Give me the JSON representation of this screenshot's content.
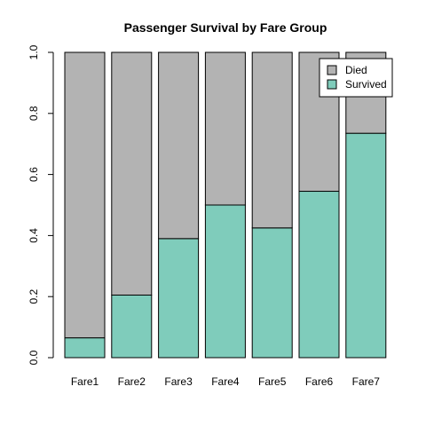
{
  "chart_data": {
    "type": "bar",
    "stacked": true,
    "title": "Passenger Survival by Fare Group",
    "xlabel": "",
    "ylabel": "",
    "categories": [
      "Fare1",
      "Fare2",
      "Fare3",
      "Fare4",
      "Fare5",
      "Fare6",
      "Fare7"
    ],
    "series": [
      {
        "name": "Survived",
        "color": "#7fccbb",
        "values": [
          0.065,
          0.205,
          0.39,
          0.5,
          0.425,
          0.545,
          0.735
        ]
      },
      {
        "name": "Died",
        "color": "#b3b3b3",
        "values": [
          0.935,
          0.795,
          0.61,
          0.5,
          0.575,
          0.455,
          0.265
        ]
      }
    ],
    "ylim": [
      0,
      1.0
    ],
    "yticks": [
      "0.0",
      "0.2",
      "0.4",
      "0.6",
      "0.8",
      "1.0"
    ],
    "legend": {
      "position": "top-right",
      "entries": [
        {
          "label": "Died",
          "color": "#b3b3b3"
        },
        {
          "label": "Survived",
          "color": "#7fccbb"
        }
      ]
    },
    "grid": false
  }
}
